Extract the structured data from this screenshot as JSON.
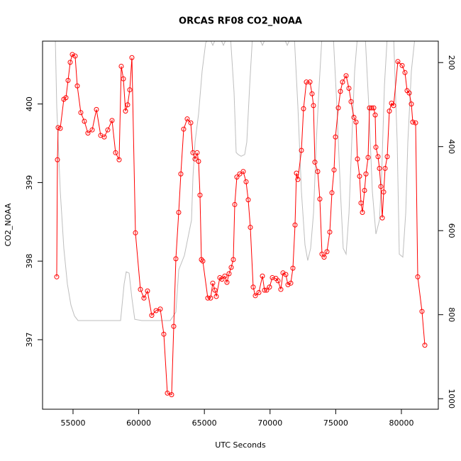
{
  "chart_data": {
    "type": "line",
    "title": "ORCAS RF08 CO2_NOAA",
    "xlabel": "UTC Seconds",
    "ylabel": "CO2_NOAA",
    "color": "#ff0000",
    "x": [
      53758,
      53812,
      53866,
      54028,
      54298,
      54460,
      54622,
      54784,
      54946,
      55162,
      55324,
      55594,
      55864,
      56134,
      56458,
      56782,
      57106,
      57376,
      57646,
      57970,
      58240,
      58510,
      58672,
      58834,
      58996,
      59158,
      59320,
      59482,
      59752,
      60130,
      60400,
      60670,
      60994,
      61318,
      61642,
      61912,
      62182,
      62506,
      62668,
      62830,
      63046,
      63208,
      63424,
      63694,
      63964,
      64126,
      64288,
      64450,
      64558,
      64666,
      64774,
      64882,
      65260,
      65476,
      65638,
      65800,
      65908,
      66178,
      66340,
      66556,
      66718,
      66880,
      67042,
      67204,
      67312,
      67474,
      67690,
      67960,
      68176,
      68338,
      68500,
      68716,
      68878,
      69148,
      69418,
      69580,
      69742,
      69958,
      70174,
      70444,
      70606,
      70822,
      70984,
      71200,
      71362,
      71578,
      71740,
      71902,
      72010,
      72118,
      72388,
      72550,
      72766,
      73036,
      73198,
      73306,
      73414,
      73630,
      73792,
      73954,
      74116,
      74332,
      74548,
      74710,
      74872,
      74980,
      75196,
      75358,
      75520,
      75790,
      76006,
      76168,
      76384,
      76546,
      76654,
      76816,
      76924,
      77032,
      77194,
      77302,
      77464,
      77572,
      77734,
      77896,
      78004,
      78058,
      78220,
      78328,
      78436,
      78544,
      78652,
      78760,
      78922,
      79084,
      79246,
      79408,
      79732,
      80056,
      80272,
      80434,
      80596,
      80758,
      80866,
      81082,
      81244,
      81568,
      81784
    ],
    "values": [
      397.8,
      399.29,
      399.7,
      399.69,
      400.06,
      400.08,
      400.3,
      400.53,
      400.63,
      400.61,
      400.23,
      399.89,
      399.78,
      399.63,
      399.67,
      399.93,
      399.6,
      399.58,
      399.67,
      399.79,
      399.38,
      399.29,
      400.48,
      400.32,
      399.91,
      399.99,
      400.18,
      400.59,
      398.36,
      397.64,
      397.53,
      397.62,
      397.31,
      397.37,
      397.39,
      397.07,
      396.32,
      396.3,
      397.17,
      398.03,
      398.62,
      399.11,
      399.68,
      399.81,
      399.76,
      399.38,
      399.3,
      399.38,
      399.27,
      398.84,
      398.02,
      398.0,
      397.53,
      397.53,
      397.72,
      397.63,
      397.55,
      397.79,
      397.77,
      397.81,
      397.73,
      397.84,
      397.92,
      398.02,
      398.72,
      399.07,
      399.11,
      399.14,
      399.01,
      398.78,
      398.43,
      397.67,
      397.56,
      397.6,
      397.81,
      397.63,
      397.63,
      397.67,
      397.79,
      397.78,
      397.75,
      397.64,
      397.85,
      397.83,
      397.7,
      397.72,
      397.91,
      398.46,
      399.12,
      399.04,
      399.41,
      399.94,
      400.28,
      400.28,
      400.13,
      399.98,
      399.26,
      399.14,
      398.79,
      398.09,
      398.05,
      398.12,
      398.37,
      398.87,
      399.16,
      399.58,
      399.95,
      400.16,
      400.28,
      400.36,
      400.2,
      400.03,
      399.83,
      399.77,
      399.3,
      399.08,
      398.74,
      398.62,
      398.9,
      399.11,
      399.32,
      399.95,
      399.95,
      399.95,
      399.86,
      399.45,
      399.33,
      399.18,
      398.95,
      398.55,
      398.88,
      399.18,
      399.33,
      399.91,
      400.01,
      399.98,
      400.54,
      400.49,
      400.4,
      400.17,
      400.14,
      400.0,
      399.77,
      399.76,
      397.8,
      397.36,
      396.93
    ],
    "y2_series": {
      "axis": "y2",
      "color": "#bebebe",
      "x": [
        53650,
        53760,
        54030,
        54300,
        54570,
        54840,
        55110,
        55380,
        56460,
        58620,
        58890,
        59050,
        59270,
        59480,
        59700,
        60240,
        62400,
        62830,
        63050,
        63480,
        63750,
        64020,
        64130,
        64290,
        64560,
        64830,
        65100,
        65370,
        65640,
        65910,
        66180,
        66450,
        66720,
        66990,
        67260,
        67420,
        67580,
        67800,
        68070,
        68230,
        68450,
        68660,
        69150,
        69420,
        69690,
        71040,
        71310,
        71580,
        71850,
        72120,
        72390,
        72660,
        72870,
        73090,
        73310,
        73520,
        73740,
        73950,
        74820,
        75090,
        75360,
        75570,
        75790,
        76010,
        76220,
        76440,
        76650,
        77250,
        77520,
        77790,
        78060,
        78330,
        78490,
        78710,
        78920,
        79410,
        79680,
        79840,
        80110,
        80330,
        80490,
        80760,
        81030
      ],
      "values": [
        140,
        305,
        507,
        642,
        727,
        777,
        803,
        814,
        814,
        814,
        727,
        698,
        701,
        760,
        811,
        814,
        814,
        794,
        693,
        659,
        617,
        575,
        473,
        389,
        322,
        220,
        153,
        140,
        159,
        140,
        140,
        159,
        140,
        140,
        271,
        414,
        419,
        423,
        419,
        389,
        254,
        140,
        140,
        159,
        140,
        140,
        159,
        140,
        140,
        305,
        507,
        634,
        671,
        642,
        558,
        389,
        254,
        140,
        140,
        305,
        507,
        642,
        656,
        558,
        389,
        220,
        140,
        140,
        305,
        507,
        608,
        575,
        473,
        254,
        140,
        140,
        389,
        656,
        663,
        558,
        389,
        220,
        140
      ]
    },
    "xlim": [
      52680,
      82810
    ],
    "ylim": [
      396.115,
      400.8
    ],
    "y2lim": [
      1025,
      149
    ],
    "xticks": [
      55000,
      60000,
      65000,
      70000,
      75000,
      80000
    ],
    "yticks": [
      397,
      398,
      399,
      400
    ],
    "y2ticks": [
      200,
      400,
      600,
      800,
      1000
    ]
  }
}
